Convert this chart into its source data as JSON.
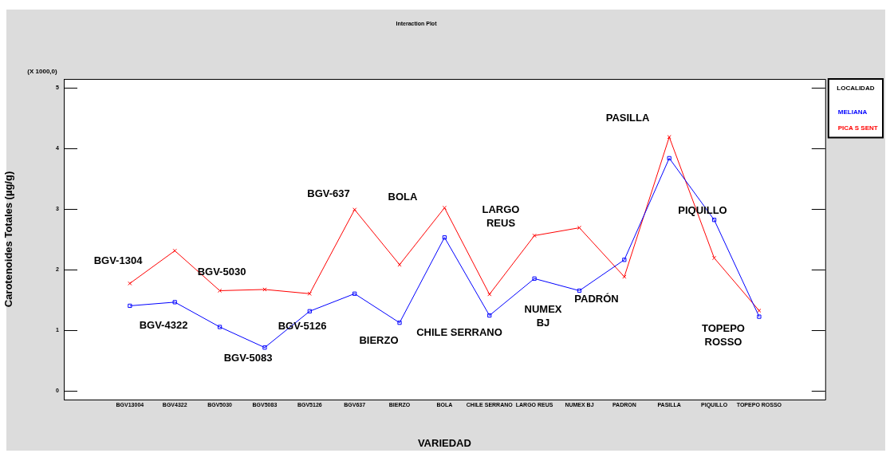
{
  "chart_data": {
    "type": "line",
    "title": "Interaction Plot",
    "xlabel": "VARIEDAD",
    "ylabel": "Carotenoides Totales (µg/g)",
    "legend_title": "LOCALIDAD",
    "legend": "top right",
    "grid": false,
    "categories": [
      "BGV13004",
      "BGV4322",
      "BGV5030",
      "BGV5083",
      "BGV5126",
      "BGV637",
      "BIERZO",
      "BOLA",
      "CHILE SERRANO",
      "LARGO REUS",
      "NUMEX BJ",
      "PADRON",
      "PASILLA",
      "PIQUILLO",
      "TOPEPO ROSSO"
    ],
    "series": [
      {
        "name": "MELIANA",
        "color": "#0000ff",
        "marker": "square",
        "values": [
          1.4,
          1.46,
          1.05,
          0.71,
          1.31,
          1.6,
          1.12,
          2.53,
          1.24,
          1.85,
          1.65,
          2.16,
          3.84,
          2.82,
          1.22
        ]
      },
      {
        "name": "PICA S SENT",
        "color": "#ff0000",
        "marker": "cross",
        "values": [
          1.77,
          2.31,
          1.65,
          1.67,
          1.6,
          2.99,
          2.08,
          3.02,
          1.59,
          2.56,
          2.69,
          1.88,
          4.19,
          2.19,
          1.32
        ]
      }
    ],
    "ylim": [
      -0.15,
      5.15
    ],
    "yticks": [
      0,
      1,
      2,
      3,
      4,
      5
    ],
    "annotations": [
      "(X 1000,0)",
      "BGV-1304",
      "BGV-4322",
      "BGV-5030",
      "BGV-5083",
      "BGV-5126",
      "BGV-637",
      "BIERZO",
      "BOLA",
      "CHILE SERRANO",
      "LARGO\nREUS",
      "NUMEX\nBJ",
      "PADRÓN",
      "PASILLA",
      "PIQUILLO",
      "TOPEPO\nROSSO"
    ]
  }
}
